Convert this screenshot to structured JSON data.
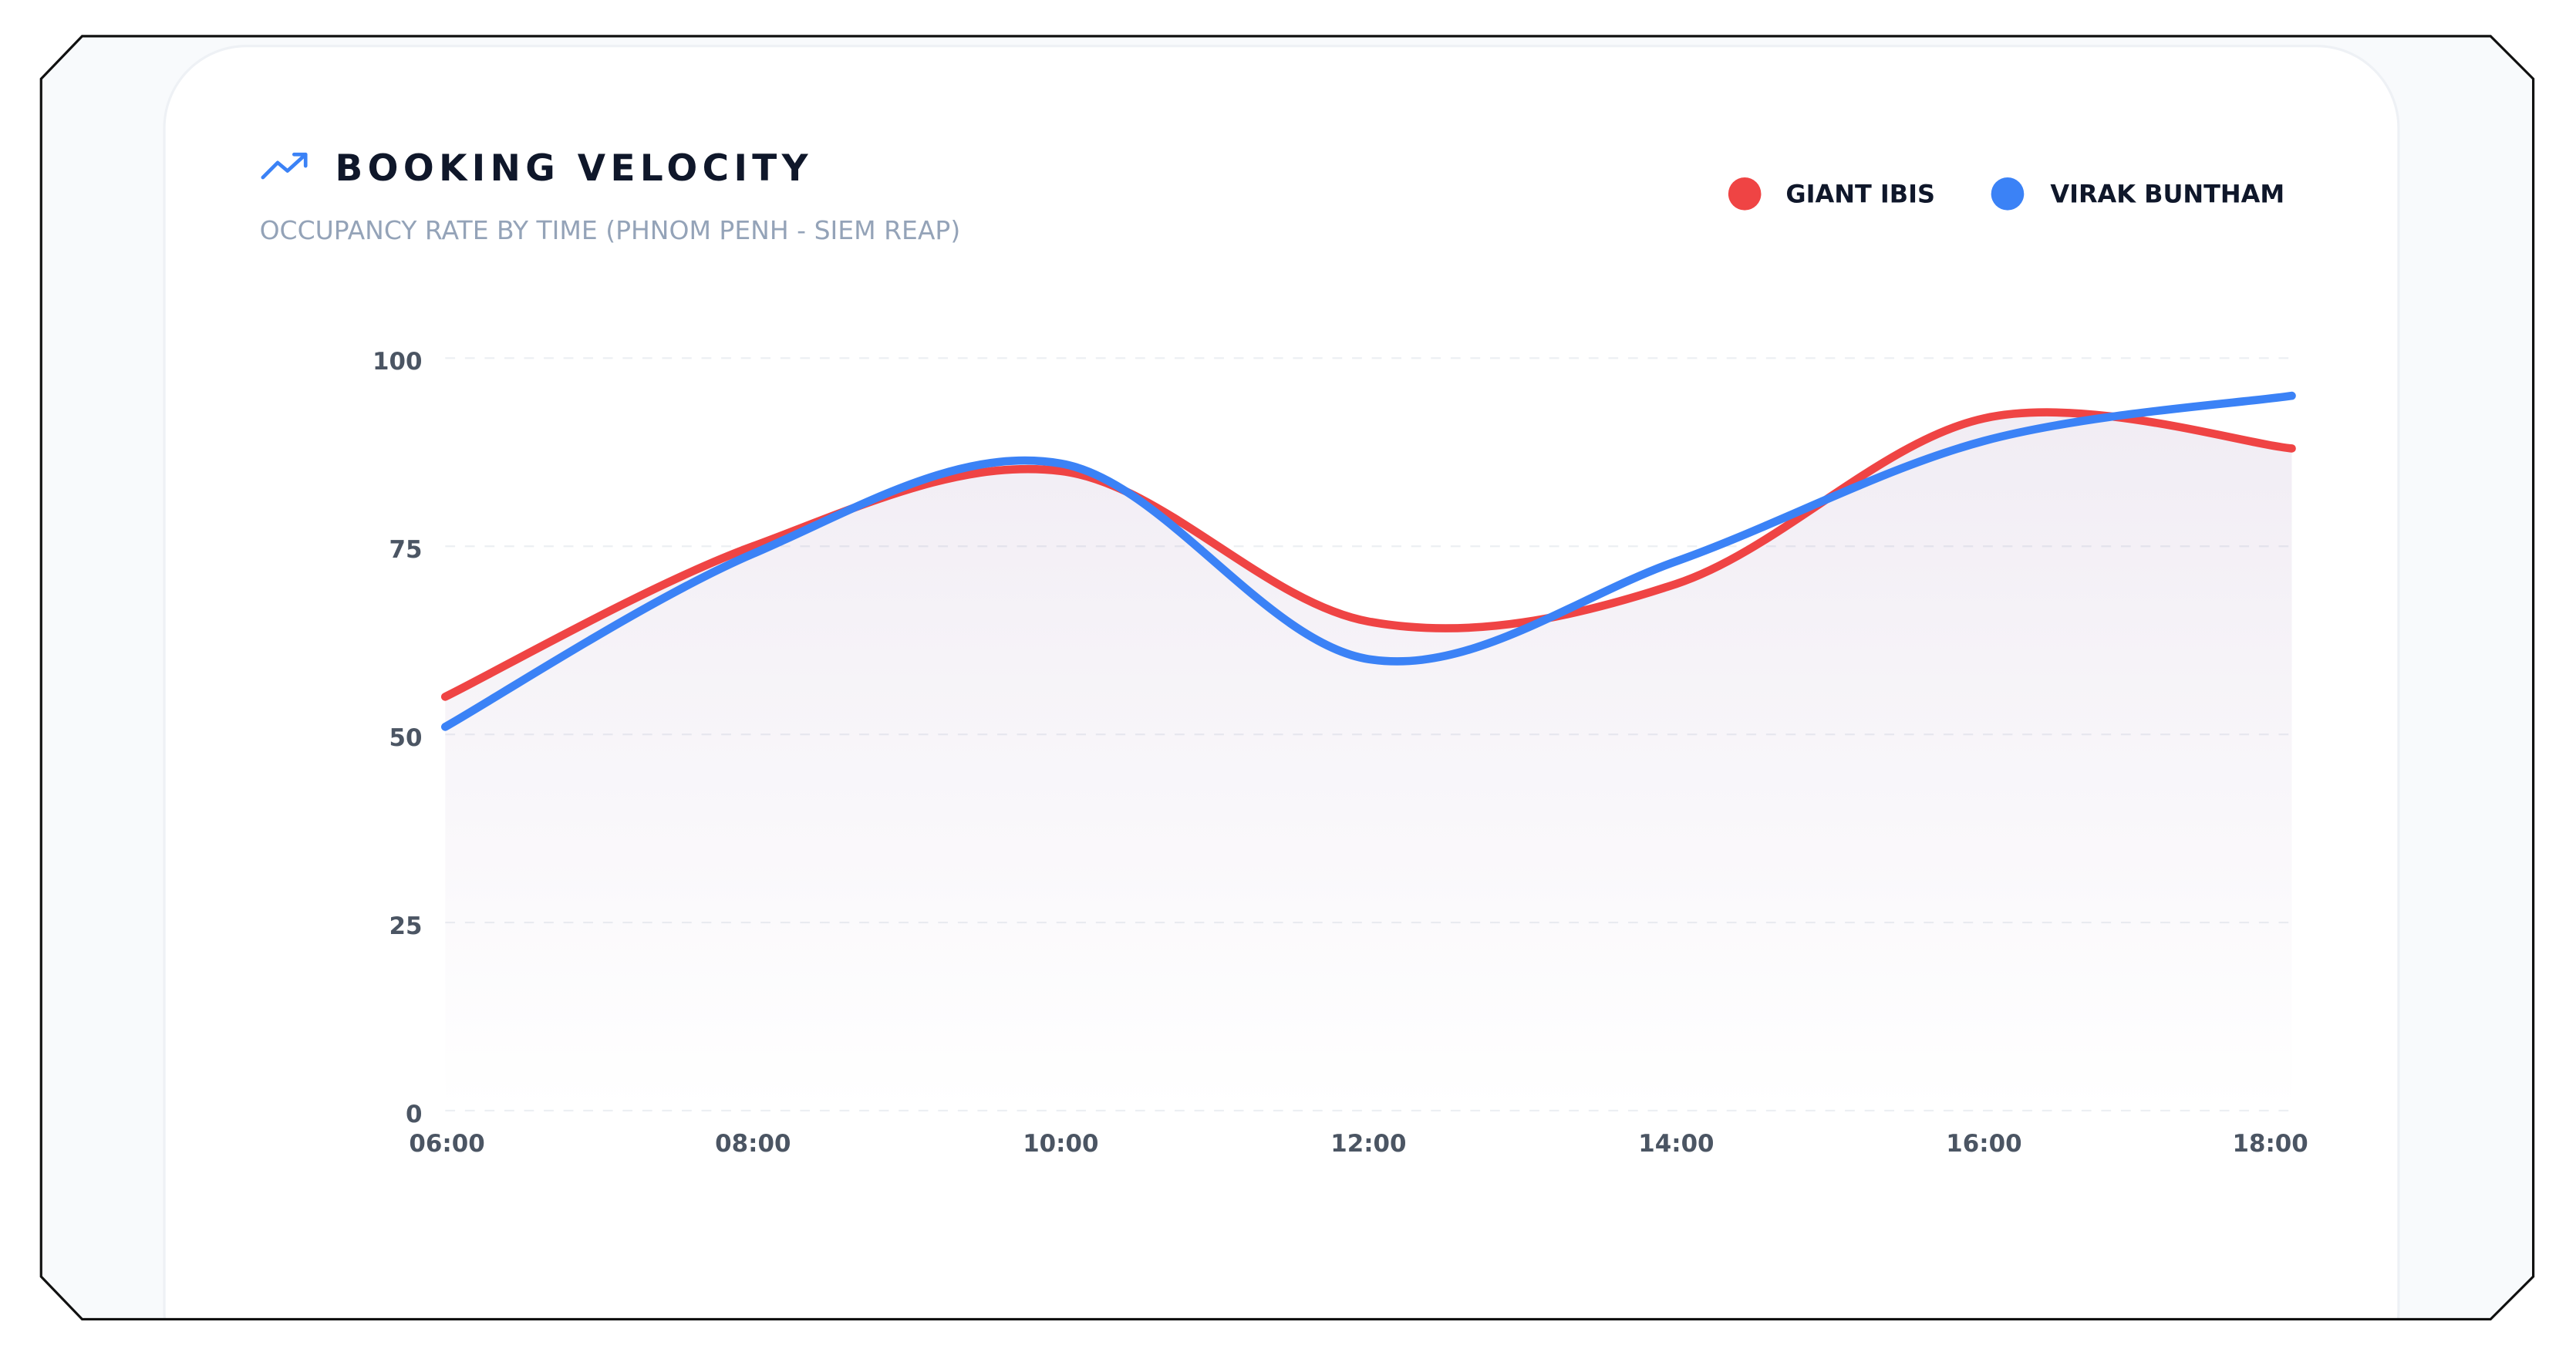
{
  "chart_data": {
    "type": "line",
    "title": "BOOKING VELOCITY",
    "subtitle": "OCCUPANCY RATE BY TIME (PHNOM PENH - SIEM REAP)",
    "categories": [
      "06:00",
      "08:00",
      "10:00",
      "12:00",
      "14:00",
      "16:00",
      "18:00"
    ],
    "series": [
      {
        "name": "GIANT IBIS",
        "color": "#ef4444",
        "values": [
          55,
          75,
          85,
          65,
          70,
          92,
          88
        ]
      },
      {
        "name": "VIRAK BUNTHAM",
        "color": "#3b82f6",
        "values": [
          51,
          74,
          86,
          60,
          73,
          89,
          95
        ]
      }
    ],
    "ylim": [
      0,
      100
    ],
    "yticks": [
      0,
      25,
      50,
      75,
      100
    ],
    "grid": true,
    "legend": "top-right"
  }
}
